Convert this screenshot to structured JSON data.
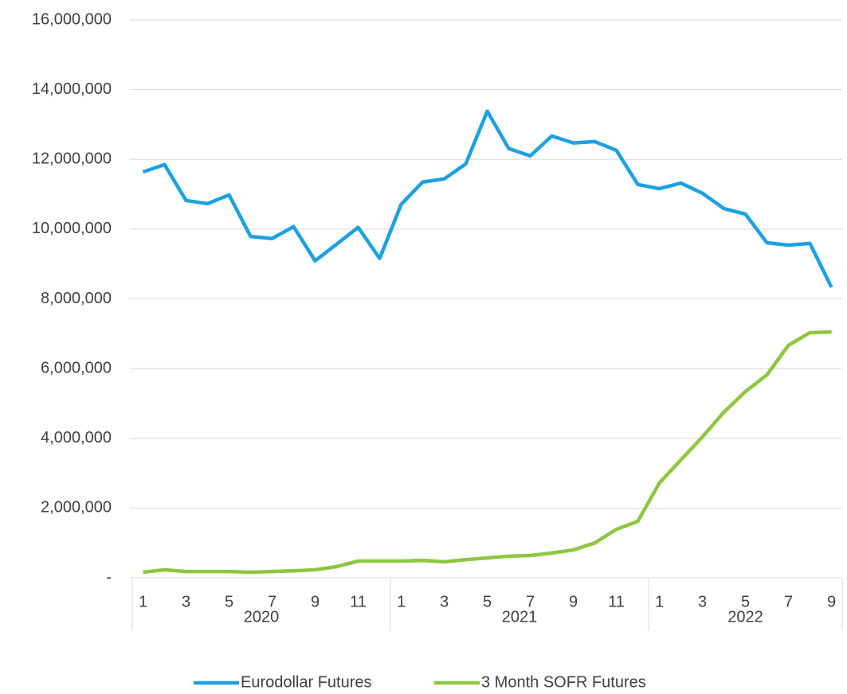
{
  "chart_data": {
    "type": "line",
    "categories": [
      "1",
      null,
      "3",
      null,
      "5",
      null,
      "7",
      null,
      "9",
      null,
      "11",
      null,
      "1",
      null,
      "3",
      null,
      "5",
      null,
      "7",
      null,
      "9",
      null,
      "11",
      null,
      "1",
      null,
      "3",
      null,
      "5",
      null,
      "7",
      null,
      "9"
    ],
    "groups": [
      {
        "name": "2020",
        "span": 12
      },
      {
        "name": "2021",
        "span": 12
      },
      {
        "name": "2022",
        "span": 9
      }
    ],
    "series": [
      {
        "name": "Eurodollar Futures",
        "color": "#1ba1e2",
        "values": [
          11640000,
          11850000,
          10820000,
          10730000,
          10980000,
          9790000,
          9730000,
          10070000,
          9090000,
          9570000,
          10050000,
          9160000,
          10710000,
          11350000,
          11440000,
          11870000,
          13380000,
          12310000,
          12100000,
          12670000,
          12470000,
          12510000,
          12260000,
          11280000,
          11160000,
          11320000,
          11030000,
          10590000,
          10430000,
          9610000,
          9540000,
          9590000,
          8330000
        ]
      },
      {
        "name": "3 Month SOFR Futures",
        "color": "#8dc63f",
        "values": [
          160000,
          230000,
          180000,
          180000,
          180000,
          160000,
          180000,
          200000,
          230000,
          320000,
          480000,
          480000,
          480000,
          500000,
          460000,
          520000,
          570000,
          620000,
          640000,
          710000,
          800000,
          1000000,
          1390000,
          1620000,
          2720000,
          3380000,
          4040000,
          4750000,
          5340000,
          5820000,
          6670000,
          7030000,
          7050000
        ]
      }
    ],
    "ylim": [
      0,
      16000000
    ],
    "yticks": [
      {
        "value": 0,
        "label": "-"
      },
      {
        "value": 2000000,
        "label": "2,000,000"
      },
      {
        "value": 4000000,
        "label": "4,000,000"
      },
      {
        "value": 6000000,
        "label": "6,000,000"
      },
      {
        "value": 8000000,
        "label": "8,000,000"
      },
      {
        "value": 10000000,
        "label": "10,000,000"
      },
      {
        "value": 12000000,
        "label": "12,000,000"
      },
      {
        "value": 14000000,
        "label": "14,000,000"
      },
      {
        "value": 16000000,
        "label": "16,000,000"
      }
    ],
    "grid": true,
    "legend": "bottom"
  }
}
